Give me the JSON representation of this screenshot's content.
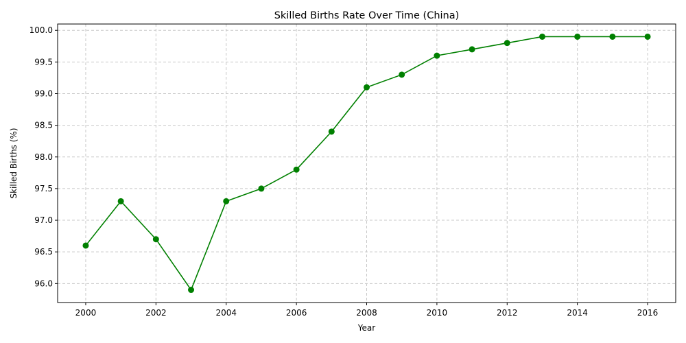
{
  "chart_data": {
    "type": "line",
    "title": "Skilled Births Rate Over Time (China)",
    "xlabel": "Year",
    "ylabel": "Skilled Births (%)",
    "x": [
      2000,
      2001,
      2002,
      2003,
      2004,
      2005,
      2006,
      2007,
      2008,
      2009,
      2010,
      2011,
      2012,
      2013,
      2014,
      2015,
      2016
    ],
    "series": [
      {
        "values": [
          96.6,
          97.3,
          96.7,
          95.9,
          97.3,
          97.5,
          97.8,
          98.4,
          99.1,
          99.3,
          99.6,
          99.7,
          99.8,
          99.9,
          99.9,
          99.9,
          99.9
        ],
        "color": "#008000",
        "marker": "circle"
      }
    ],
    "xlim": [
      1999.2,
      2016.8
    ],
    "ylim": [
      95.7,
      100.1
    ],
    "xticks": [
      2000,
      2002,
      2004,
      2006,
      2008,
      2010,
      2012,
      2014,
      2016
    ],
    "yticks": [
      96.0,
      96.5,
      97.0,
      97.5,
      98.0,
      98.5,
      99.0,
      99.5,
      100.0
    ],
    "ytick_labels": [
      "96.0",
      "96.5",
      "97.0",
      "97.5",
      "98.0",
      "98.5",
      "99.0",
      "99.5",
      "100.0"
    ],
    "grid": true
  }
}
